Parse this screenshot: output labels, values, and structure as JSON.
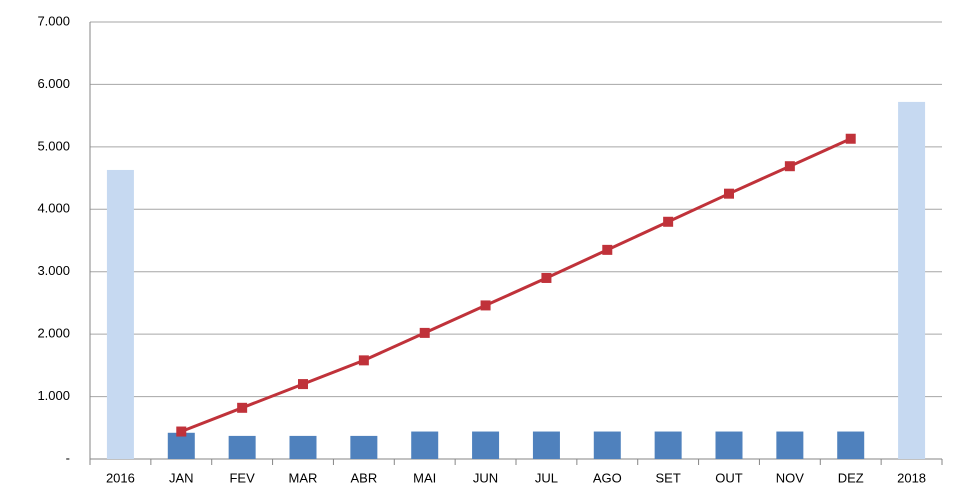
{
  "chart_data": {
    "type": "combo",
    "categories": [
      "2016",
      "JAN",
      "FEV",
      "MAR",
      "ABR",
      "MAI",
      "JUN",
      "JUL",
      "AGO",
      "SET",
      "OUT",
      "NOV",
      "DEZ",
      "2018"
    ],
    "series": [
      {
        "type": "bar",
        "colors": [
          "#c6d9f1",
          "#4f81bd",
          "#4f81bd",
          "#4f81bd",
          "#4f81bd",
          "#4f81bd",
          "#4f81bd",
          "#4f81bd",
          "#4f81bd",
          "#4f81bd",
          "#4f81bd",
          "#4f81bd",
          "#4f81bd",
          "#c6d9f1"
        ],
        "values": [
          4630,
          420,
          370,
          370,
          370,
          440,
          440,
          440,
          440,
          440,
          440,
          440,
          440,
          5720
        ]
      },
      {
        "type": "line",
        "color": "#c0323a",
        "values": [
          null,
          440,
          820,
          1200,
          1580,
          2020,
          2460,
          2900,
          3350,
          3800,
          4250,
          4690,
          5130,
          null
        ]
      }
    ],
    "ylim": [
      0,
      7000
    ],
    "yticks": [
      {
        "value": 0,
        "label": "-"
      },
      {
        "value": 1000,
        "label": "1.000"
      },
      {
        "value": 2000,
        "label": "2.000"
      },
      {
        "value": 3000,
        "label": "3.000"
      },
      {
        "value": 4000,
        "label": "4.000"
      },
      {
        "value": 5000,
        "label": "5.000"
      },
      {
        "value": 6000,
        "label": "6.000"
      },
      {
        "value": 7000,
        "label": "7.000"
      }
    ],
    "grid": true
  }
}
